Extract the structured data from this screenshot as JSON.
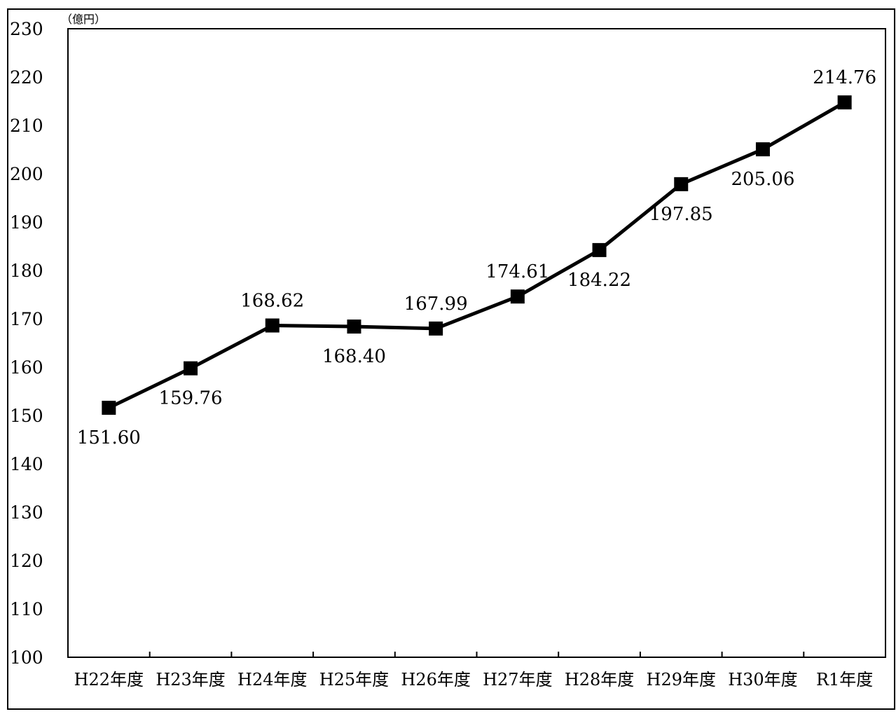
{
  "chart_data": {
    "type": "line",
    "unit_label": "（億円）",
    "categories": [
      "H22年度",
      "H23年度",
      "H24年度",
      "H25年度",
      "H26年度",
      "H27年度",
      "H28年度",
      "H29年度",
      "H30年度",
      "R1年度"
    ],
    "series": [
      {
        "values": [
          151.6,
          159.76,
          168.62,
          168.4,
          167.99,
          174.61,
          184.22,
          197.85,
          205.06,
          214.76
        ],
        "labels": [
          "151.60",
          "159.76",
          "168.62",
          "168.40",
          "167.99",
          "174.61",
          "184.22",
          "197.85",
          "205.06",
          "214.76"
        ],
        "color": "#000000",
        "marker": "square"
      }
    ],
    "ylim": [
      100,
      230
    ],
    "yticks": [
      "100",
      "110",
      "120",
      "130",
      "140",
      "150",
      "160",
      "170",
      "180",
      "190",
      "200",
      "210",
      "220",
      "230"
    ],
    "label_positions": [
      "below",
      "below",
      "above",
      "below",
      "above",
      "above",
      "below",
      "below",
      "below",
      "above"
    ],
    "grid": false,
    "legend": "none"
  }
}
